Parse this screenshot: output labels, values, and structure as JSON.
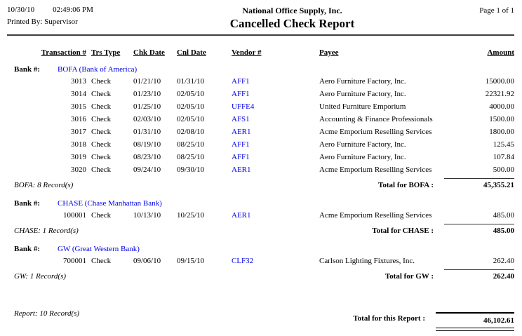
{
  "header": {
    "date": "10/30/10",
    "time": "02:49:06 PM",
    "printed_by": "Printed By: Supervisor",
    "company": "National Office Supply, Inc.",
    "report_title": "Cancelled Check Report",
    "page": "Page 1 of 1"
  },
  "columns": [
    "Transaction #",
    "Trs Type",
    "Chk Date",
    "Cnl Date",
    "Vendor #",
    "Payee",
    "Amount"
  ],
  "bank_label": "Bank #:",
  "banks": [
    {
      "name": "BOFA (Bank of America)",
      "rows": [
        {
          "transaction": "3013",
          "type": "Check",
          "chk_date": "01/21/10",
          "cnl_date": "01/31/10",
          "vendor": "AFF1",
          "payee": "Aero Furniture Factory, Inc.",
          "amount": "15000.00"
        },
        {
          "transaction": "3014",
          "type": "Check",
          "chk_date": "01/23/10",
          "cnl_date": "02/05/10",
          "vendor": "AFF1",
          "payee": "Aero Furniture Factory, Inc.",
          "amount": "22321.92"
        },
        {
          "transaction": "3015",
          "type": "Check",
          "chk_date": "01/25/10",
          "cnl_date": "02/05/10",
          "vendor": "UFFE4",
          "payee": "United Furniture Emporium",
          "amount": "4000.00"
        },
        {
          "transaction": "3016",
          "type": "Check",
          "chk_date": "02/03/10",
          "cnl_date": "02/05/10",
          "vendor": "AFS1",
          "payee": "Accounting & Finance Professionals",
          "amount": "1500.00"
        },
        {
          "transaction": "3017",
          "type": "Check",
          "chk_date": "01/31/10",
          "cnl_date": "02/08/10",
          "vendor": "AER1",
          "payee": "Acme Emporium Reselling Services",
          "amount": "1800.00"
        },
        {
          "transaction": "3018",
          "type": "Check",
          "chk_date": "08/19/10",
          "cnl_date": "08/25/10",
          "vendor": "AFF1",
          "payee": "Aero Furniture Factory, Inc.",
          "amount": "125.45"
        },
        {
          "transaction": "3019",
          "type": "Check",
          "chk_date": "08/23/10",
          "cnl_date": "08/25/10",
          "vendor": "AFF1",
          "payee": "Aero Furniture Factory, Inc.",
          "amount": "107.84"
        },
        {
          "transaction": "3020",
          "type": "Check",
          "chk_date": "09/24/10",
          "cnl_date": "09/30/10",
          "vendor": "AER1",
          "payee": "Acme Emporium Reselling Services",
          "amount": "500.00"
        }
      ],
      "record_count": "BOFA: 8 Record(s)",
      "total_label": "Total for BOFA :",
      "total": "45,355.21"
    },
    {
      "name": "CHASE (Chase Manhattan Bank)",
      "rows": [
        {
          "transaction": "100001",
          "type": "Check",
          "chk_date": "10/13/10",
          "cnl_date": "10/25/10",
          "vendor": "AER1",
          "payee": "Acme Emporium Reselling Services",
          "amount": "485.00"
        }
      ],
      "record_count": "CHASE: 1 Record(s)",
      "total_label": "Total for CHASE :",
      "total": "485.00"
    },
    {
      "name": "GW (Great Western Bank)",
      "rows": [
        {
          "transaction": "700001",
          "type": "Check",
          "chk_date": "09/06/10",
          "cnl_date": "09/15/10",
          "vendor": "CLF32",
          "payee": "Carlson Lighting Fixtures, Inc.",
          "amount": "262.40"
        }
      ],
      "record_count": "GW: 1 Record(s)",
      "total_label": "Total for GW :",
      "total": "262.40"
    }
  ],
  "report_summary": {
    "record_count": "Report: 10 Record(s)",
    "total_label": "Total for this Report :",
    "total": "46,102.61"
  },
  "colors": {
    "link_blue": "#0000e6"
  }
}
